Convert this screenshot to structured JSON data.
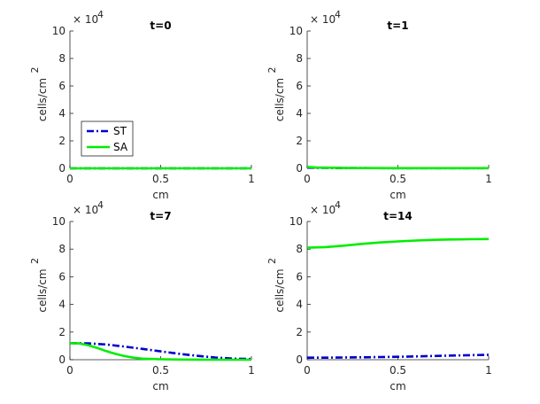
{
  "chart_data": [
    {
      "type": "line",
      "title": "t=0",
      "xlabel": "cm",
      "ylabel": "cells/cm",
      "ylabel_exponent": "2",
      "xlim": [
        0,
        1
      ],
      "ylim": [
        0,
        10
      ],
      "y_multiplier": "× 10",
      "y_multiplier_exponent": "4",
      "xticks": [
        "0",
        "0.5",
        "1"
      ],
      "yticks": [
        "0",
        "2",
        "4",
        "6",
        "8",
        "10"
      ],
      "legend": {
        "placement": "left-lower",
        "entries": [
          "ST",
          "SA"
        ]
      },
      "series": [
        {
          "name": "ST",
          "x": [
            0,
            0.25,
            0.5,
            0.75,
            1
          ],
          "y": [
            0,
            0,
            0,
            0,
            0
          ]
        },
        {
          "name": "SA",
          "x": [
            0,
            0.25,
            0.5,
            0.75,
            1
          ],
          "y": [
            0,
            0,
            0,
            0,
            0
          ]
        }
      ]
    },
    {
      "type": "line",
      "title": "t=1",
      "xlabel": "cm",
      "ylabel": "cells/cm",
      "ylabel_exponent": "2",
      "xlim": [
        0,
        1
      ],
      "ylim": [
        0,
        10
      ],
      "y_multiplier": "× 10",
      "y_multiplier_exponent": "4",
      "xticks": [
        "0",
        "0.5",
        "1"
      ],
      "yticks": [
        "0",
        "2",
        "4",
        "6",
        "8",
        "10"
      ],
      "series": [
        {
          "name": "ST",
          "x": [
            0,
            0.05,
            0.25,
            0.5,
            0.75,
            1
          ],
          "y": [
            0.05,
            0.04,
            0.02,
            0.01,
            0.01,
            0.01
          ]
        },
        {
          "name": "SA",
          "x": [
            0,
            0.05,
            0.25,
            0.5,
            0.75,
            1
          ],
          "y": [
            0.1,
            0.06,
            0.02,
            0.01,
            0.01,
            0.01
          ]
        }
      ]
    },
    {
      "type": "line",
      "title": "t=7",
      "xlabel": "cm",
      "ylabel": "cells/cm",
      "ylabel_exponent": "2",
      "xlim": [
        0,
        1
      ],
      "ylim": [
        0,
        10
      ],
      "y_multiplier": "× 10",
      "y_multiplier_exponent": "4",
      "xticks": [
        "0",
        "0.5",
        "1"
      ],
      "yticks": [
        "0",
        "2",
        "4",
        "6",
        "8",
        "10"
      ],
      "series": [
        {
          "name": "ST",
          "x": [
            0,
            0.1,
            0.2,
            0.3,
            0.4,
            0.5,
            0.6,
            0.7,
            0.8,
            0.9,
            1
          ],
          "y": [
            1.2,
            1.18,
            1.1,
            0.95,
            0.78,
            0.6,
            0.43,
            0.28,
            0.16,
            0.08,
            0.05
          ]
        },
        {
          "name": "SA",
          "x": [
            0,
            0.05,
            0.1,
            0.15,
            0.2,
            0.25,
            0.3,
            0.35,
            0.4,
            0.5,
            0.6,
            0.7,
            0.8,
            0.9,
            1
          ],
          "y": [
            1.2,
            1.18,
            1.05,
            0.85,
            0.62,
            0.42,
            0.26,
            0.15,
            0.08,
            0.03,
            0.01,
            0.005,
            0,
            0,
            0
          ]
        }
      ]
    },
    {
      "type": "line",
      "title": "t=14",
      "xlabel": "cm",
      "ylabel": "cells/cm",
      "ylabel_exponent": "2",
      "xlim": [
        0,
        1
      ],
      "ylim": [
        0,
        10
      ],
      "y_multiplier": "× 10",
      "y_multiplier_exponent": "4",
      "xticks": [
        "0",
        "0.5",
        "1"
      ],
      "yticks": [
        "0",
        "2",
        "4",
        "6",
        "8",
        "10"
      ],
      "series": [
        {
          "name": "ST",
          "x": [
            0,
            0.1,
            0.2,
            0.3,
            0.4,
            0.5,
            0.6,
            0.7,
            0.8,
            0.9,
            1
          ],
          "y": [
            0.15,
            0.15,
            0.16,
            0.17,
            0.19,
            0.21,
            0.24,
            0.27,
            0.3,
            0.33,
            0.35
          ]
        },
        {
          "name": "SA",
          "x": [
            0,
            0.1,
            0.2,
            0.3,
            0.4,
            0.5,
            0.6,
            0.7,
            0.8,
            0.9,
            1
          ],
          "y": [
            8.1,
            8.15,
            8.25,
            8.38,
            8.48,
            8.56,
            8.62,
            8.67,
            8.7,
            8.72,
            8.73
          ]
        }
      ]
    }
  ],
  "colors": {
    "ST": "#0000cc",
    "SA": "#00ee00",
    "axis": "#262626"
  }
}
